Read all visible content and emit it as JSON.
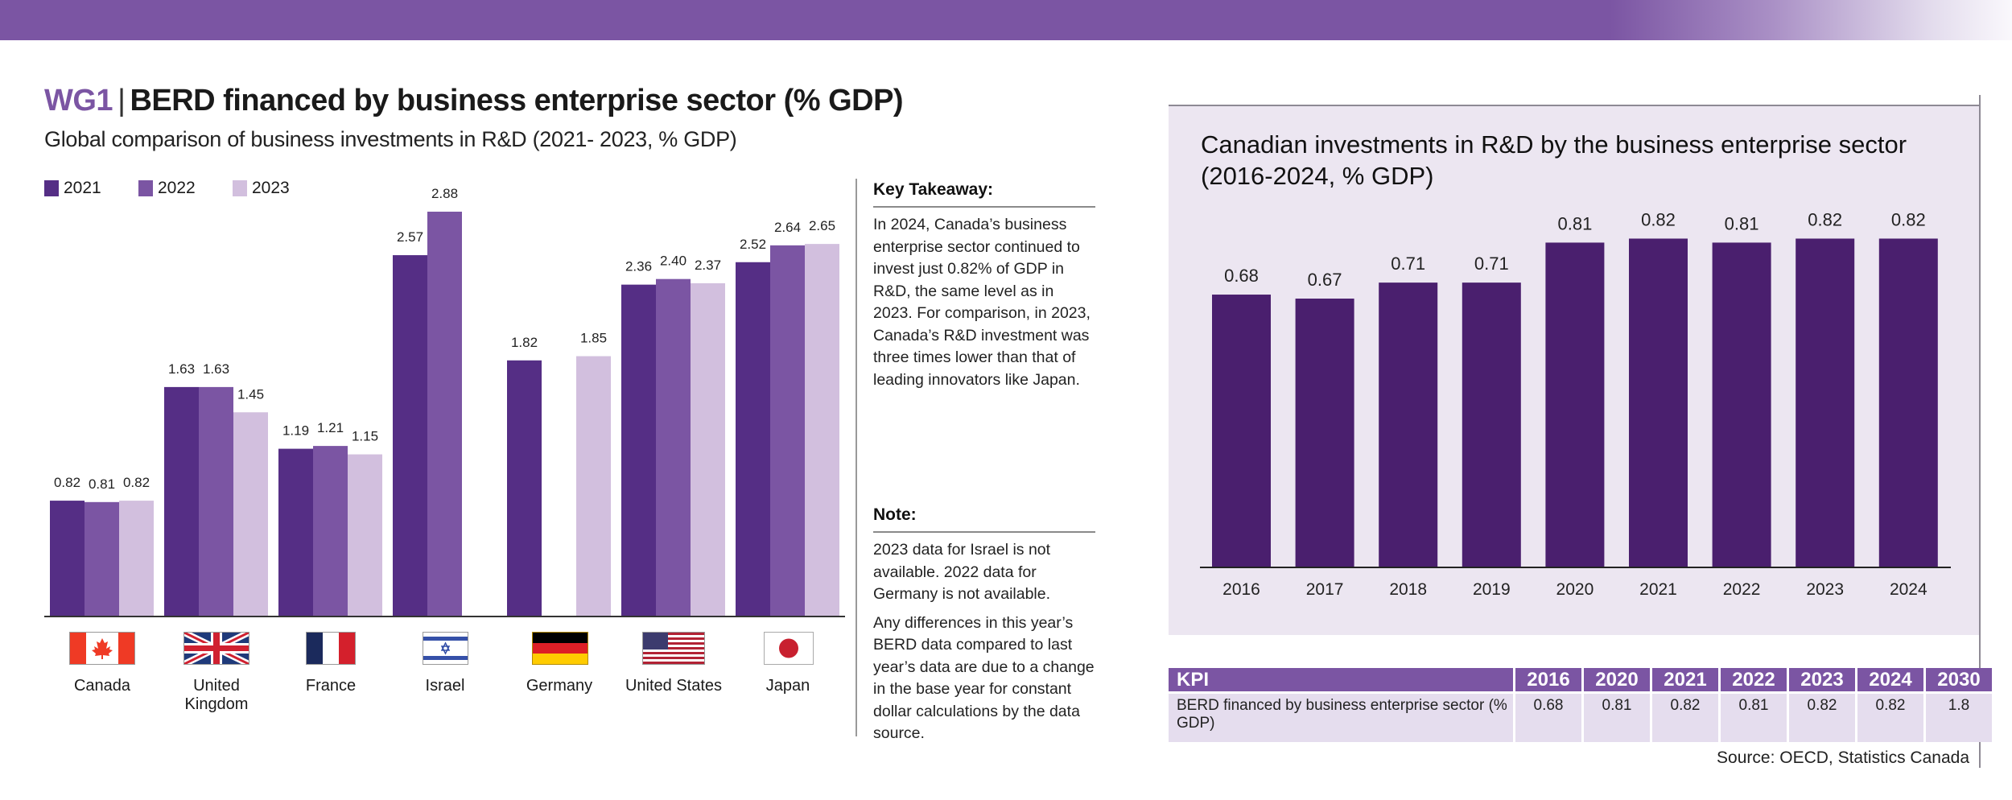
{
  "header": {
    "code": "WG1",
    "separator": "|",
    "title": "BERD financed by business enterprise sector (% GDP)",
    "subtitle": "Global comparison of business investments in R&D (2021- 2023, % GDP)"
  },
  "colors": {
    "brand": "#7b55a3",
    "series_2021": "#552e85",
    "series_2022": "#7b55a3",
    "series_2023": "#d2bfde",
    "canada_bar": "#4a1f6e",
    "panel_bg": "#ece6f1"
  },
  "legend": [
    {
      "label": "2021",
      "color": "#552e85"
    },
    {
      "label": "2022",
      "color": "#7b55a3"
    },
    {
      "label": "2023",
      "color": "#d2bfde"
    }
  ],
  "countries": [
    {
      "name": "Canada",
      "flag": "canada-flag"
    },
    {
      "name": "United Kingdom",
      "flag": "uk-flag"
    },
    {
      "name": "France",
      "flag": "france-flag"
    },
    {
      "name": "Israel",
      "flag": "israel-flag"
    },
    {
      "name": "Germany",
      "flag": "germany-flag"
    },
    {
      "name": "United States",
      "flag": "us-flag"
    },
    {
      "name": "Japan",
      "flag": "japan-flag"
    }
  ],
  "key_takeaway": {
    "heading": "Key Takeaway:",
    "text": "In 2024, Canada’s business enterprise sector continued to invest just 0.82% of GDP in R&D, the same level as in 2023. For comparison, in 2023, Canada’s R&D investment was three times lower than that of leading innovators like Japan."
  },
  "note": {
    "heading": "Note:",
    "paragraphs": [
      "2023 data for Israel is not available. 2022 data for Germany is not available.",
      "Any differences in this year’s BERD data compared to last year’s data are due to a change in the base year for constant dollar calculations by the data source."
    ]
  },
  "right_panel": {
    "title": "Canadian investments in R&D by the business enterprise sector (2016-2024, % GDP)"
  },
  "kpi_table": {
    "header": [
      "KPI",
      "2016",
      "2020",
      "2021",
      "2022",
      "2023",
      "2024",
      "2030"
    ],
    "rows": [
      [
        "BERD financed by business enterprise sector (% GDP)",
        "0.68",
        "0.81",
        "0.82",
        "0.81",
        "0.82",
        "0.82",
        "1.8"
      ]
    ]
  },
  "source": "Source: OECD, Statistics Canada",
  "chart_data": [
    {
      "type": "bar",
      "title": "Global comparison of business investments in R&D (2021- 2023, % GDP)",
      "xlabel": "",
      "ylabel": "% GDP",
      "categories": [
        "Canada",
        "United Kingdom",
        "France",
        "Israel",
        "Germany",
        "United States",
        "Japan"
      ],
      "series": [
        {
          "name": "2021",
          "values": [
            0.82,
            1.63,
            1.19,
            2.57,
            1.82,
            2.36,
            2.52
          ]
        },
        {
          "name": "2022",
          "values": [
            0.81,
            1.63,
            1.21,
            2.88,
            null,
            2.4,
            2.64
          ]
        },
        {
          "name": "2023",
          "values": [
            0.82,
            1.45,
            1.15,
            null,
            1.85,
            2.37,
            2.65
          ]
        }
      ],
      "value_labels": [
        [
          "0.82",
          "1.63",
          "1.19",
          "2.57",
          "1.82",
          "2.36",
          "2.52"
        ],
        [
          "0.81",
          "1.63",
          "1.21",
          "2.88",
          null,
          "2.40",
          "2.64"
        ],
        [
          "0.82",
          "1.45",
          "1.15",
          null,
          "1.85",
          "2.37",
          "2.65"
        ]
      ],
      "ylim": [
        0,
        2.9
      ],
      "grid": false,
      "legend": "top-left"
    },
    {
      "type": "bar",
      "title": "Canadian investments in R&D by the business enterprise sector (2016-2024, % GDP)",
      "xlabel": "",
      "ylabel": "% GDP",
      "categories": [
        "2016",
        "2017",
        "2018",
        "2019",
        "2020",
        "2021",
        "2022",
        "2023",
        "2024"
      ],
      "values": [
        0.68,
        0.67,
        0.71,
        0.71,
        0.81,
        0.82,
        0.81,
        0.82,
        0.82
      ],
      "value_labels": [
        "0.68",
        "0.67",
        "0.71",
        "0.71",
        "0.81",
        "0.82",
        "0.81",
        "0.82",
        "0.82"
      ],
      "ylim": [
        0,
        0.9
      ],
      "grid": false,
      "legend": "none"
    }
  ]
}
